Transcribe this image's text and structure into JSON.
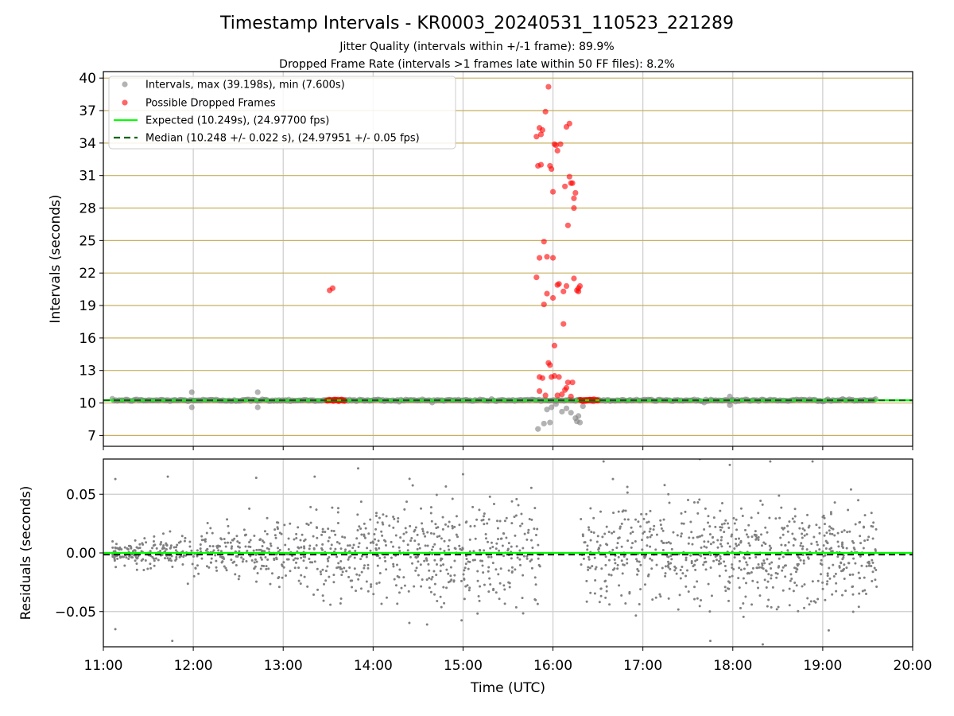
{
  "title": "Timestamp Intervals - KR0003_20240531_110523_221289",
  "subtitle_1": "Jitter Quality (intervals within +/-1 frame): 89.9%",
  "subtitle_2": "Dropped Frame Rate (intervals >1 frames late within 50 FF files): 8.2%",
  "colors": {
    "intervals": "#808080",
    "dropped": "#ff0000",
    "expected": "#00ff00",
    "median": "#006400",
    "hgrid": "#c8b060",
    "vgrid": "#cccccc"
  },
  "chart_data": [
    {
      "type": "scatter",
      "ylabel": "Intervals (seconds)",
      "xlim": [
        "11:00",
        "20:00"
      ],
      "ylim": [
        6,
        40.6
      ],
      "x_ticks": [
        "11:00",
        "12:00",
        "13:00",
        "14:00",
        "15:00",
        "16:00",
        "17:00",
        "18:00",
        "19:00",
        "20:00"
      ],
      "y_ticks": [
        7,
        10,
        13,
        16,
        19,
        22,
        25,
        28,
        31,
        34,
        37,
        40
      ],
      "grid": true,
      "legend_position": "top-left",
      "legend": [
        "Intervals, max (39.198s), min (7.600s)",
        "Possible Dropped Frames",
        "Expected (10.249s), (24.97700 fps)",
        "Median (10.248 +/- 0.022 s), (24.97951 +/- 0.05 fps)"
      ],
      "expected_interval": 10.249,
      "median_interval": 10.248,
      "interval_band": {
        "start": "11:06",
        "end": "19:36",
        "value": 10.25
      },
      "interval_outliers": [
        {
          "x": "11:59",
          "y": 11.0
        },
        {
          "x": "11:59",
          "y": 9.6
        },
        {
          "x": "12:43",
          "y": 11.0
        },
        {
          "x": "12:43",
          "y": 9.6
        },
        {
          "x": "15:50",
          "y": 7.6
        },
        {
          "x": "15:54",
          "y": 8.1
        },
        {
          "x": "15:56",
          "y": 9.4
        },
        {
          "x": "15:58",
          "y": 8.2
        },
        {
          "x": "15:59",
          "y": 9.6
        },
        {
          "x": "16:02",
          "y": 9.9
        },
        {
          "x": "16:06",
          "y": 9.2
        },
        {
          "x": "16:09",
          "y": 9.5
        },
        {
          "x": "16:12",
          "y": 9.1
        },
        {
          "x": "16:15",
          "y": 8.6
        },
        {
          "x": "16:16",
          "y": 8.3
        },
        {
          "x": "16:17",
          "y": 8.8
        },
        {
          "x": "16:18",
          "y": 8.2
        },
        {
          "x": "16:20",
          "y": 9.7
        },
        {
          "x": "17:58",
          "y": 10.6
        },
        {
          "x": "17:58",
          "y": 9.8
        }
      ],
      "dropped_frames": [
        {
          "x": "13:31",
          "y": 20.4
        },
        {
          "x": "13:33",
          "y": 20.6
        },
        {
          "x": "15:49",
          "y": 34.6
        },
        {
          "x": "15:51",
          "y": 35.4
        },
        {
          "x": "15:52",
          "y": 34.8
        },
        {
          "x": "15:53",
          "y": 35.2
        },
        {
          "x": "15:55",
          "y": 36.9
        },
        {
          "x": "15:57",
          "y": 39.2
        },
        {
          "x": "15:50",
          "y": 31.9
        },
        {
          "x": "15:52",
          "y": 32.0
        },
        {
          "x": "15:58",
          "y": 31.9
        },
        {
          "x": "15:59",
          "y": 31.6
        },
        {
          "x": "16:00",
          "y": 29.5
        },
        {
          "x": "16:01",
          "y": 33.9
        },
        {
          "x": "16:02",
          "y": 33.8
        },
        {
          "x": "16:03",
          "y": 33.3
        },
        {
          "x": "16:05",
          "y": 33.9
        },
        {
          "x": "16:09",
          "y": 35.5
        },
        {
          "x": "16:11",
          "y": 35.8
        },
        {
          "x": "16:08",
          "y": 30.0
        },
        {
          "x": "16:11",
          "y": 30.9
        },
        {
          "x": "16:12",
          "y": 30.3
        },
        {
          "x": "16:13",
          "y": 30.3
        },
        {
          "x": "16:14",
          "y": 28.9
        },
        {
          "x": "16:15",
          "y": 29.4
        },
        {
          "x": "16:14",
          "y": 28.0
        },
        {
          "x": "16:10",
          "y": 26.4
        },
        {
          "x": "15:54",
          "y": 24.9
        },
        {
          "x": "15:51",
          "y": 23.4
        },
        {
          "x": "15:56",
          "y": 23.5
        },
        {
          "x": "16:00",
          "y": 23.4
        },
        {
          "x": "15:49",
          "y": 21.6
        },
        {
          "x": "15:56",
          "y": 20.1
        },
        {
          "x": "15:54",
          "y": 19.1
        },
        {
          "x": "16:00",
          "y": 19.7
        },
        {
          "x": "16:03",
          "y": 20.9
        },
        {
          "x": "16:04",
          "y": 21.0
        },
        {
          "x": "16:07",
          "y": 20.3
        },
        {
          "x": "16:09",
          "y": 20.8
        },
        {
          "x": "16:14",
          "y": 21.5
        },
        {
          "x": "16:16",
          "y": 20.4
        },
        {
          "x": "16:17",
          "y": 20.3
        },
        {
          "x": "16:17",
          "y": 20.6
        },
        {
          "x": "16:18",
          "y": 20.8
        },
        {
          "x": "16:07",
          "y": 17.3
        },
        {
          "x": "16:01",
          "y": 15.3
        },
        {
          "x": "15:57",
          "y": 13.7
        },
        {
          "x": "15:58",
          "y": 13.5
        },
        {
          "x": "15:51",
          "y": 12.4
        },
        {
          "x": "15:53",
          "y": 12.3
        },
        {
          "x": "15:59",
          "y": 12.4
        },
        {
          "x": "16:01",
          "y": 12.5
        },
        {
          "x": "16:04",
          "y": 12.4
        },
        {
          "x": "16:10",
          "y": 11.9
        },
        {
          "x": "16:13",
          "y": 11.9
        },
        {
          "x": "16:08",
          "y": 11.2
        },
        {
          "x": "16:09",
          "y": 11.4
        },
        {
          "x": "15:51",
          "y": 11.1
        },
        {
          "x": "15:55",
          "y": 10.7
        },
        {
          "x": "16:03",
          "y": 10.7
        },
        {
          "x": "16:06",
          "y": 10.8
        },
        {
          "x": "16:12",
          "y": 10.6
        }
      ],
      "dropped_band": [
        {
          "start": "13:29",
          "end": "13:41",
          "value": 10.25
        },
        {
          "start": "16:18",
          "end": "16:30",
          "value": 10.25
        }
      ]
    },
    {
      "type": "scatter",
      "ylabel": "Residuals (seconds)",
      "xlabel": "Time (UTC)",
      "xlim": [
        "11:00",
        "20:00"
      ],
      "ylim": [
        -0.08,
        0.08
      ],
      "x_ticks": [
        "11:00",
        "12:00",
        "13:00",
        "14:00",
        "15:00",
        "16:00",
        "17:00",
        "18:00",
        "19:00",
        "20:00"
      ],
      "y_ticks": [
        "0.05",
        "0.00",
        "−0.05"
      ],
      "y_tick_values": [
        0.05,
        0.0,
        -0.05
      ],
      "grid": true,
      "expected_residual": 0.0,
      "median_residual": -0.0015,
      "segments": [
        {
          "start": "11:06",
          "end": "15:52",
          "spread_start": 0.006,
          "spread_end": 0.028
        },
        {
          "start": "16:18",
          "end": "19:36",
          "spread_start": 0.028,
          "spread_end": 0.03
        }
      ],
      "points_per_segment": [
        900,
        700
      ],
      "extreme_points": [
        {
          "x": "11:08",
          "y": 0.063
        },
        {
          "x": "11:08",
          "y": -0.065
        },
        {
          "x": "11:43",
          "y": 0.065
        },
        {
          "x": "11:46",
          "y": -0.075
        },
        {
          "x": "12:42",
          "y": 0.064
        },
        {
          "x": "13:21",
          "y": 0.065
        },
        {
          "x": "13:50",
          "y": 0.072
        },
        {
          "x": "14:36",
          "y": -0.061
        },
        {
          "x": "15:00",
          "y": 0.067
        },
        {
          "x": "16:40",
          "y": 0.063
        },
        {
          "x": "17:38",
          "y": 0.08
        },
        {
          "x": "17:45",
          "y": -0.075
        },
        {
          "x": "17:58",
          "y": 0.075
        },
        {
          "x": "18:20",
          "y": -0.078
        },
        {
          "x": "18:25",
          "y": 0.078
        },
        {
          "x": "19:04",
          "y": -0.066
        }
      ]
    }
  ]
}
